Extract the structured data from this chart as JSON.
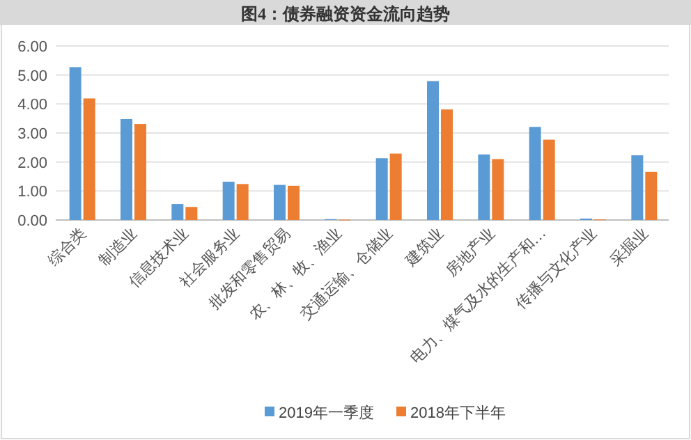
{
  "chart_data": {
    "type": "bar",
    "title": "图4：债券融资资金流向趋势",
    "categories": [
      "综合类",
      "制造业",
      "信息技术业",
      "社会服务业",
      "批发和零售贸易",
      "农、林、牧、渔业",
      "交通运输、仓储业",
      "建筑业",
      "房地产业",
      "电力、煤气及水的生产和…",
      "传播与文化产业",
      "采掘业"
    ],
    "series": [
      {
        "name": "2019年一季度",
        "color": "#5b9bd5",
        "values": [
          5.27,
          3.48,
          0.55,
          1.32,
          1.21,
          0.03,
          2.13,
          4.79,
          2.26,
          3.21,
          0.05,
          2.23
        ]
      },
      {
        "name": "2018年下半年",
        "color": "#ed7d31",
        "values": [
          4.19,
          3.31,
          0.45,
          1.24,
          1.18,
          0.01,
          2.29,
          3.81,
          2.1,
          2.77,
          0.02,
          1.66
        ]
      }
    ],
    "ylim": [
      0,
      6
    ],
    "yticks": [
      {
        "value": 0,
        "label": "0.00"
      },
      {
        "value": 1,
        "label": "1.00"
      },
      {
        "value": 2,
        "label": "2.00"
      },
      {
        "value": 3,
        "label": "3.00"
      },
      {
        "value": 4,
        "label": "4.00"
      },
      {
        "value": 5,
        "label": "5.00"
      },
      {
        "value": 6,
        "label": "6.00"
      }
    ],
    "grid": "y",
    "legend": "bottom"
  }
}
